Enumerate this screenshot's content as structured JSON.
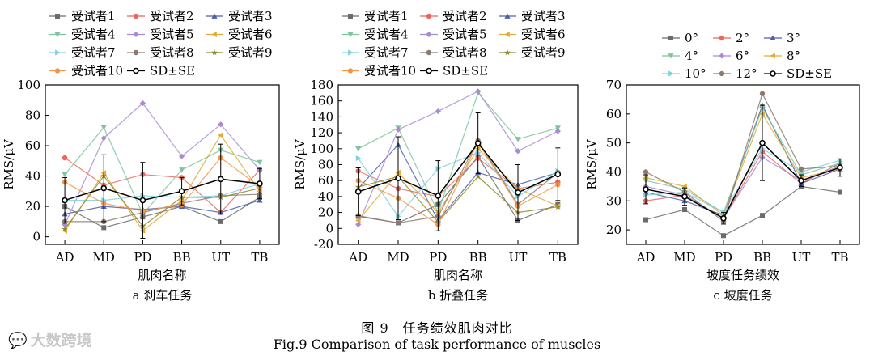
{
  "figure": {
    "caption_cn": "图 9　任务绩效肌肉对比",
    "caption_en": "Fig.9 Comparison of task performance of muscles",
    "watermark_text": "大数跨境",
    "watermark_icon": "chat-bubble-logo-icon"
  },
  "chart_data": [
    {
      "type": "line",
      "title": "a  刹车任务",
      "xlabel": "肌肉名称",
      "ylabel": "RMS/μV",
      "ylim": [
        -5,
        100
      ],
      "yticks": [
        0,
        20,
        40,
        60,
        80,
        100
      ],
      "categories": [
        "AD",
        "MD",
        "PD",
        "BB",
        "UT",
        "TB"
      ],
      "legend_position": "top",
      "series": [
        {
          "name": "受试者1",
          "color": "#6b6b6b",
          "marker": "square",
          "values": [
            20,
            6,
            13,
            20,
            10,
            26
          ]
        },
        {
          "name": "受试者2",
          "color": "#e8685f",
          "marker": "circle",
          "values": [
            52,
            34,
            41,
            39,
            16,
            44
          ]
        },
        {
          "name": "受试者3",
          "color": "#4d5fa8",
          "marker": "triangle-up",
          "values": [
            15,
            20,
            18,
            20,
            16,
            24
          ]
        },
        {
          "name": "受试者4",
          "color": "#7fc49e",
          "marker": "triangle-down",
          "values": [
            41,
            72,
            15,
            44,
            57,
            49
          ]
        },
        {
          "name": "受试者5",
          "color": "#a98bd4",
          "marker": "diamond",
          "values": [
            8,
            65,
            88,
            53,
            74,
            44
          ]
        },
        {
          "name": "受试者6",
          "color": "#e2ac36",
          "marker": "triangle-left",
          "values": [
            4,
            42,
            4,
            24,
            67,
            30
          ]
        },
        {
          "name": "受试者7",
          "color": "#7fd1de",
          "marker": "triangle-right",
          "values": [
            24,
            24,
            27,
            26,
            27,
            35
          ]
        },
        {
          "name": "受试者8",
          "color": "#8c7a70",
          "marker": "hexagon",
          "values": [
            10,
            10,
            16,
            22,
            27,
            28
          ]
        },
        {
          "name": "受试者9",
          "color": "#8f8a2c",
          "marker": "star",
          "values": [
            5,
            40,
            7,
            26,
            26,
            32
          ]
        },
        {
          "name": "受试者10",
          "color": "#f0954a",
          "marker": "pentagon",
          "values": [
            36,
            22,
            17,
            21,
            52,
            33
          ]
        },
        {
          "name": "SD±SE",
          "color": "#000000",
          "marker": "open-circle",
          "mean": true,
          "values": [
            24,
            32,
            24,
            30,
            38,
            35
          ],
          "err": [
            15,
            22,
            25,
            9,
            23,
            10
          ]
        }
      ]
    },
    {
      "type": "line",
      "title": "b  折叠任务",
      "xlabel": "肌肉名称",
      "ylabel": "RMS/μV",
      "ylim": [
        -20,
        180
      ],
      "yticks": [
        -20,
        0,
        20,
        40,
        60,
        80,
        100,
        120,
        140,
        160,
        180
      ],
      "categories": [
        "AD",
        "MD",
        "PD",
        "BB",
        "UT",
        "TB"
      ],
      "legend_position": "top",
      "series": [
        {
          "name": "受试者1",
          "color": "#6b6b6b",
          "marker": "square",
          "values": [
            15,
            7,
            30,
            90,
            10,
            30
          ]
        },
        {
          "name": "受试者2",
          "color": "#e8685f",
          "marker": "circle",
          "values": [
            72,
            50,
            40,
            88,
            50,
            58
          ]
        },
        {
          "name": "受试者3",
          "color": "#4d5fa8",
          "marker": "triangle-up",
          "values": [
            50,
            105,
            10,
            70,
            55,
            70
          ]
        },
        {
          "name": "受试者4",
          "color": "#7fc49e",
          "marker": "triangle-down",
          "values": [
            100,
            126,
            20,
            170,
            112,
            126
          ]
        },
        {
          "name": "受试者5",
          "color": "#a98bd4",
          "marker": "diamond",
          "values": [
            5,
            124,
            147,
            172,
            97,
            122
          ]
        },
        {
          "name": "受试者6",
          "color": "#e2ac36",
          "marker": "triangle-left",
          "values": [
            10,
            70,
            20,
            100,
            50,
            28
          ]
        },
        {
          "name": "受试者7",
          "color": "#7fd1de",
          "marker": "triangle-right",
          "values": [
            88,
            15,
            75,
            95,
            40,
            72
          ]
        },
        {
          "name": "受试者8",
          "color": "#8c7a70",
          "marker": "hexagon",
          "values": [
            16,
            7,
            15,
            110,
            30,
            70
          ]
        },
        {
          "name": "受试者9",
          "color": "#8f8a2c",
          "marker": "star",
          "values": [
            52,
            65,
            8,
            65,
            20,
            27
          ]
        },
        {
          "name": "受试者10",
          "color": "#f0954a",
          "marker": "pentagon",
          "values": [
            60,
            38,
            5,
            108,
            28,
            55
          ]
        },
        {
          "name": "SD±SE",
          "color": "#000000",
          "marker": "open-circle",
          "mean": true,
          "values": [
            46,
            63,
            41,
            107,
            45,
            68
          ],
          "err": [
            30,
            52,
            44,
            38,
            35,
            33
          ]
        }
      ]
    },
    {
      "type": "line",
      "title": "c  坡度任务",
      "xlabel": "坡度任务绩效",
      "ylabel": "RMS/μV",
      "ylim": [
        15,
        70
      ],
      "yticks": [
        20,
        30,
        40,
        50,
        60,
        70
      ],
      "categories": [
        "AD",
        "MD",
        "PD",
        "BB",
        "UT",
        "TB"
      ],
      "legend_position": "top",
      "series": [
        {
          "name": "0°",
          "color": "#6b6b6b",
          "marker": "square",
          "values": [
            23.5,
            27,
            18,
            25,
            35,
            33
          ]
        },
        {
          "name": "2°",
          "color": "#e8685f",
          "marker": "circle",
          "values": [
            30,
            32,
            24,
            47,
            36,
            43
          ]
        },
        {
          "name": "3°",
          "color": "#4d5fa8",
          "marker": "triangle-up",
          "values": [
            33,
            30,
            25,
            63,
            36,
            41
          ]
        },
        {
          "name": "4°",
          "color": "#7fc49e",
          "marker": "triangle-down",
          "values": [
            37,
            34,
            26,
            62,
            39,
            43
          ]
        },
        {
          "name": "6°",
          "color": "#a98bd4",
          "marker": "diamond",
          "values": [
            35,
            32,
            24,
            45,
            37,
            42
          ]
        },
        {
          "name": "8°",
          "color": "#e2ac36",
          "marker": "triangle-left",
          "values": [
            38,
            35,
            25,
            60,
            38,
            41
          ]
        },
        {
          "name": "10°",
          "color": "#7fd1de",
          "marker": "triangle-right",
          "values": [
            32,
            33,
            26,
            48,
            40,
            44
          ]
        },
        {
          "name": "12°",
          "color": "#8c7a70",
          "marker": "hexagon",
          "values": [
            40,
            33,
            23,
            67,
            41,
            42
          ]
        },
        {
          "name": "SD±SE",
          "color": "#000000",
          "marker": "open-circle",
          "mean": true,
          "values": [
            34,
            31.5,
            24,
            50,
            37,
            41.5
          ],
          "err": [
            5,
            3,
            2,
            13,
            2,
            3
          ]
        }
      ]
    }
  ]
}
